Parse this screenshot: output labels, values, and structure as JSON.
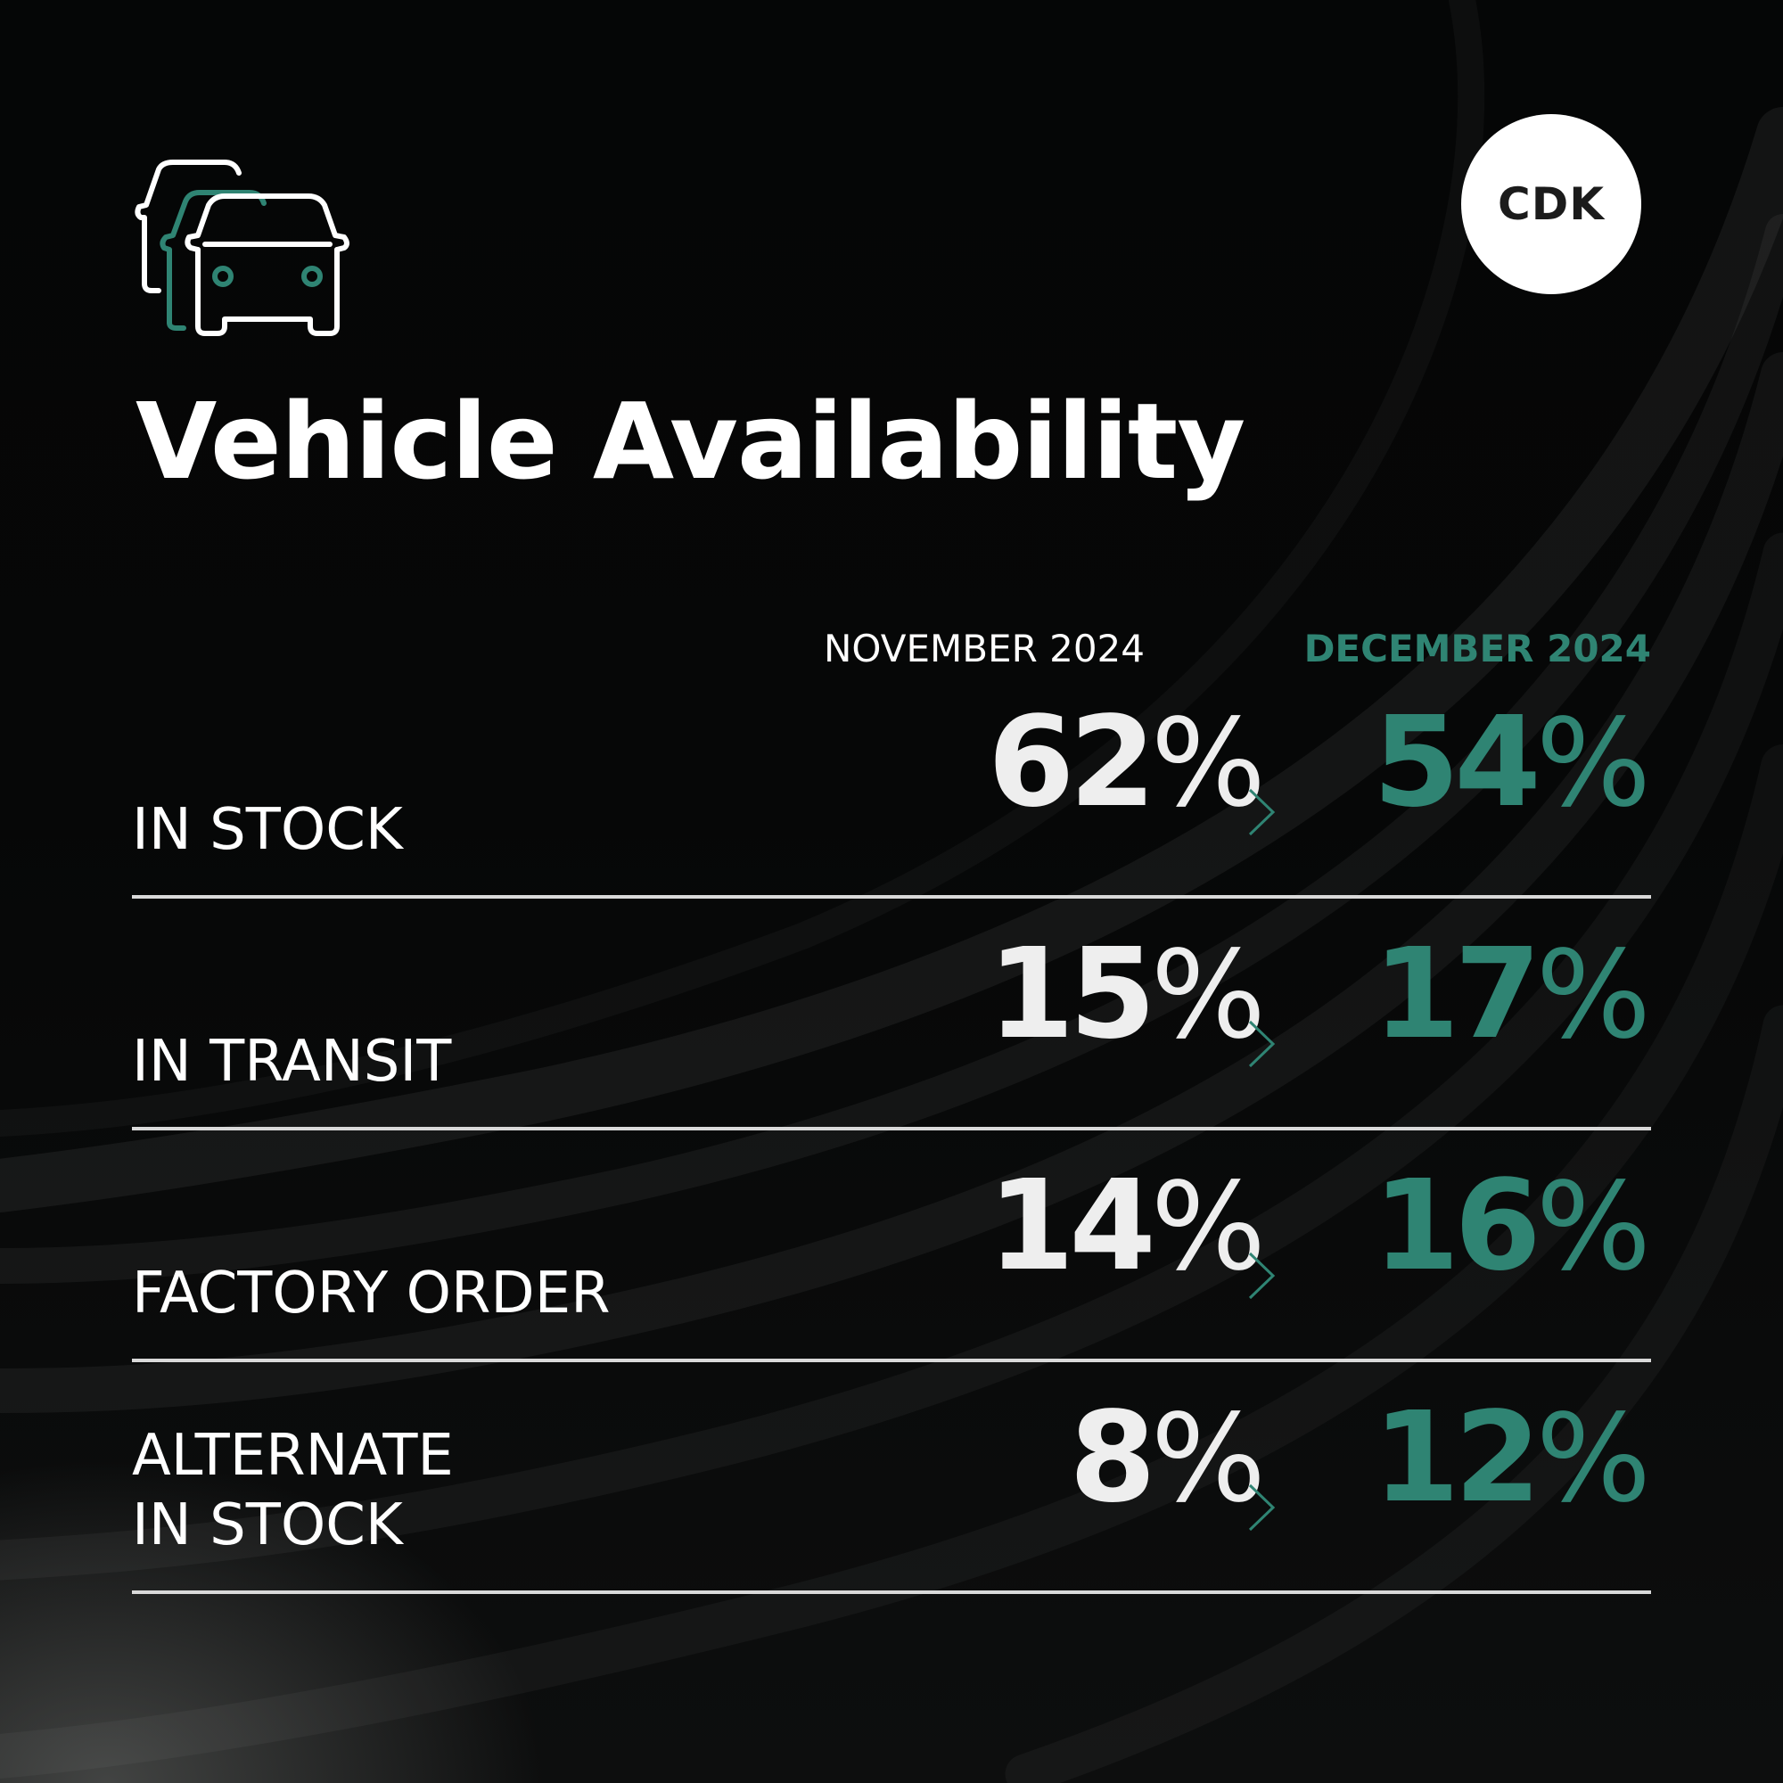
{
  "title": "Vehicle Availability",
  "logo": {
    "text": "CDK"
  },
  "icon": "cars-icon",
  "colors": {
    "background": "#060707",
    "accent": "#2f8473",
    "text": "#ffffff",
    "rule": "#d9d9d9"
  },
  "columns": {
    "previous": "NOVEMBER 2024",
    "current": "DECEMBER 2024"
  },
  "rows": [
    {
      "label_line1": "IN STOCK",
      "label_line2": "",
      "previous": "62",
      "current": "54",
      "unit": "%"
    },
    {
      "label_line1": "IN TRANSIT",
      "label_line2": "",
      "previous": "15",
      "current": "17",
      "unit": "%"
    },
    {
      "label_line1": "FACTORY ORDER",
      "label_line2": "",
      "previous": "14",
      "current": "16",
      "unit": "%"
    },
    {
      "label_line1": "ALTERNATE",
      "label_line2": "IN STOCK",
      "previous": "8",
      "current": "12",
      "unit": "%"
    }
  ]
}
